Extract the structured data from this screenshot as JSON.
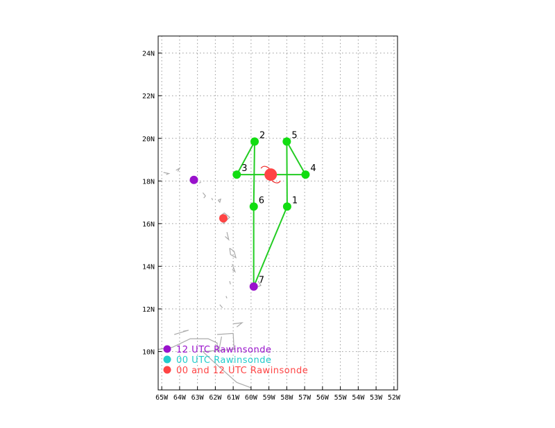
{
  "map": {
    "lon_range": [
      -65.2,
      -51.8
    ],
    "lat_range": [
      8.2,
      24.8
    ],
    "lat_ticks": [
      {
        "value": 24,
        "label": "24N"
      },
      {
        "value": 22,
        "label": "22N"
      },
      {
        "value": 20,
        "label": "20N"
      },
      {
        "value": 18,
        "label": "18N"
      },
      {
        "value": 16,
        "label": "16N"
      },
      {
        "value": 14,
        "label": "14N"
      },
      {
        "value": 12,
        "label": "12N"
      },
      {
        "value": 10,
        "label": "10N"
      }
    ],
    "lon_ticks": [
      {
        "value": -65,
        "label": "65W"
      },
      {
        "value": -64,
        "label": "64W"
      },
      {
        "value": -63,
        "label": "63W"
      },
      {
        "value": -62,
        "label": "62W"
      },
      {
        "value": -61,
        "label": "61W"
      },
      {
        "value": -60,
        "label": "60W"
      },
      {
        "value": -59,
        "label": "59W"
      },
      {
        "value": -58,
        "label": "58W"
      },
      {
        "value": -57,
        "label": "57W"
      },
      {
        "value": -56,
        "label": "56W"
      },
      {
        "value": -55,
        "label": "55W"
      },
      {
        "value": -54,
        "label": "54W"
      },
      {
        "value": -53,
        "label": "53W"
      },
      {
        "value": -52,
        "label": "52W"
      }
    ],
    "grid": true,
    "colors": {
      "track": "#22cc22",
      "dropsonde_point": "#11dd11",
      "rawinsonde_12": "#9911cc",
      "rawinsonde_00": "#22cccc",
      "rawinsonde_00_12": "#ff4444",
      "coastline": "#aaaaaa",
      "storm_symbol": "#ee3333"
    },
    "storm_center": {
      "lon": -58.9,
      "lat": 18.3,
      "icon": "tropical-storm-icon"
    },
    "flight_points": [
      {
        "label": "1",
        "lon": -57.98,
        "lat": 16.8
      },
      {
        "label": "2",
        "lon": -59.8,
        "lat": 19.85
      },
      {
        "label": "3",
        "lon": -60.8,
        "lat": 18.3
      },
      {
        "label": "4",
        "lon": -56.95,
        "lat": 18.3
      },
      {
        "label": "5",
        "lon": -58.0,
        "lat": 19.85
      },
      {
        "label": "6",
        "lon": -59.85,
        "lat": 16.8
      },
      {
        "label": "7",
        "lon": -59.85,
        "lat": 13.05
      }
    ],
    "flight_path": [
      "7",
      "6",
      "2",
      "3",
      "4",
      "5",
      "1",
      "7"
    ],
    "rawinsonde_stations": [
      {
        "type": "12",
        "lon": -63.2,
        "lat": 18.05
      },
      {
        "type": "00_12",
        "lon": -61.55,
        "lat": 16.25
      },
      {
        "type": "12",
        "lon": -59.85,
        "lat": 13.05
      }
    ],
    "legend": [
      {
        "key": "12",
        "text": "12 UTC Rawinsonde"
      },
      {
        "key": "00",
        "text": "00 UTC Rawinsonde"
      },
      {
        "key": "00_12",
        "text": "00 and 12 UTC Rawinsonde"
      }
    ]
  }
}
